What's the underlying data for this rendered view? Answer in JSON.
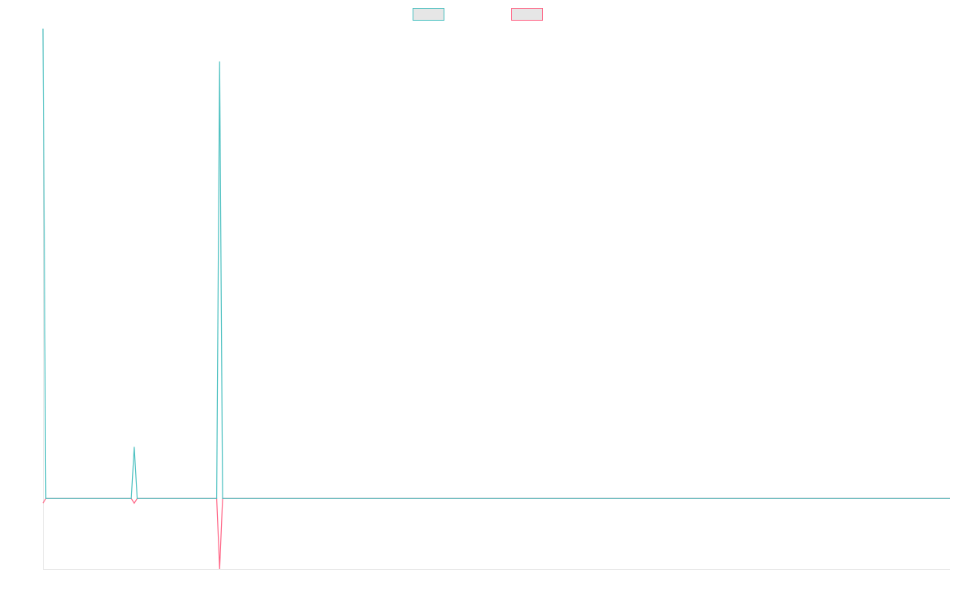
{
  "chart_data": {
    "type": "line",
    "ylim": [
      -1.5,
      10
    ],
    "legend": "top",
    "series": [
      {
        "color": "#4bc0c0",
        "values": [
          10,
          0,
          0,
          0,
          0,
          0,
          0,
          0,
          0,
          0,
          0,
          0,
          0,
          0,
          0,
          0,
          0,
          0,
          0,
          0,
          0,
          0,
          0,
          0,
          0,
          0,
          0,
          0,
          0,
          0,
          0,
          1.1,
          0,
          0,
          0,
          0,
          0,
          0,
          0,
          0,
          0,
          0,
          0,
          0,
          0,
          0,
          0,
          0,
          0,
          0,
          0,
          0,
          0,
          0,
          0,
          0,
          0,
          0,
          0,
          0,
          9.3,
          0,
          0,
          0,
          0,
          0,
          0,
          0,
          0,
          0,
          0,
          0,
          0,
          0,
          0,
          0,
          0,
          0,
          0,
          0,
          0,
          0,
          0,
          0,
          0,
          0,
          0,
          0,
          0,
          0,
          0,
          0,
          0,
          0,
          0,
          0,
          0,
          0,
          0,
          0,
          0,
          0,
          0,
          0,
          0,
          0,
          0,
          0,
          0,
          0,
          0,
          0,
          0,
          0,
          0,
          0,
          0,
          0,
          0,
          0,
          0,
          0,
          0,
          0,
          0,
          0,
          0,
          0,
          0,
          0,
          0,
          0,
          0,
          0,
          0,
          0,
          0,
          0,
          0,
          0,
          0,
          0,
          0,
          0,
          0,
          0,
          0,
          0,
          0,
          0,
          0,
          0,
          0,
          0,
          0,
          0,
          0,
          0,
          0,
          0,
          0,
          0,
          0,
          0,
          0,
          0,
          0,
          0,
          0,
          0,
          0,
          0,
          0,
          0,
          0,
          0,
          0,
          0,
          0,
          0,
          0,
          0,
          0,
          0,
          0,
          0,
          0,
          0,
          0,
          0,
          0,
          0,
          0,
          0,
          0,
          0,
          0,
          0,
          0,
          0,
          0,
          0,
          0,
          0,
          0,
          0,
          0,
          0,
          0,
          0,
          0,
          0,
          0,
          0,
          0,
          0,
          0,
          0,
          0,
          0,
          0,
          0,
          0,
          0,
          0,
          0,
          0,
          0,
          0,
          0,
          0,
          0,
          0,
          0,
          0,
          0,
          0,
          0,
          0,
          0,
          0,
          0,
          0,
          0,
          0,
          0,
          0,
          0,
          0,
          0,
          0,
          0,
          0,
          0,
          0,
          0,
          0,
          0,
          0,
          0,
          0,
          0,
          0,
          0,
          0,
          0,
          0,
          0,
          0,
          0,
          0,
          0,
          0,
          0,
          0,
          0,
          0,
          0,
          0,
          0,
          0,
          0,
          0,
          0,
          0,
          0,
          0,
          0,
          0,
          0,
          0,
          0,
          0,
          0,
          0,
          0,
          0,
          0,
          0,
          0,
          0,
          0,
          0,
          0,
          0,
          0,
          0,
          0,
          0
        ]
      },
      {
        "color": "#ff6384",
        "values": [
          -0.1,
          0,
          0,
          0,
          0,
          0,
          0,
          0,
          0,
          0,
          0,
          0,
          0,
          0,
          0,
          0,
          0,
          0,
          0,
          0,
          0,
          0,
          0,
          0,
          0,
          0,
          0,
          0,
          0,
          0,
          0,
          -0.1,
          0,
          0,
          0,
          0,
          0,
          0,
          0,
          0,
          0,
          0,
          0,
          0,
          0,
          0,
          0,
          0,
          0,
          0,
          0,
          0,
          0,
          0,
          0,
          0,
          0,
          0,
          0,
          0,
          -1.5,
          0,
          0,
          0,
          0,
          0,
          0,
          0,
          0,
          0,
          0,
          0,
          0,
          0,
          0,
          0,
          0,
          0,
          0,
          0,
          0,
          0,
          0,
          0,
          0,
          0,
          0,
          0,
          0,
          0,
          0,
          0,
          0,
          0,
          0,
          0,
          0,
          0,
          0,
          0,
          0,
          0,
          0,
          0,
          0,
          0,
          0,
          0,
          0,
          0,
          0,
          0,
          0,
          0,
          0,
          0,
          0,
          0,
          0,
          0,
          0,
          0,
          0,
          0,
          0,
          0,
          0,
          0,
          0,
          0,
          0,
          0,
          0,
          0,
          0,
          0,
          0,
          0,
          0,
          0,
          0,
          0,
          0,
          0,
          0,
          0,
          0,
          0,
          0,
          0,
          0,
          0,
          0,
          0,
          0,
          0,
          0,
          0,
          0,
          0,
          0,
          0,
          0,
          0,
          0,
          0,
          0,
          0,
          0,
          0,
          0,
          0,
          0,
          0,
          0,
          0,
          0,
          0,
          0,
          0,
          0,
          0,
          0,
          0,
          0,
          0,
          0,
          0,
          0,
          0,
          0,
          0,
          0,
          0,
          0,
          0,
          0,
          0,
          0,
          0,
          0,
          0,
          0,
          0,
          0,
          0,
          0,
          0,
          0,
          0,
          0,
          0,
          0,
          0,
          0,
          0,
          0,
          0,
          0,
          0,
          0,
          0,
          0,
          0,
          0,
          0,
          0,
          0,
          0,
          0,
          0,
          0,
          0,
          0,
          0,
          0,
          0,
          0,
          0,
          0,
          0,
          0,
          0,
          0,
          0,
          0,
          0,
          0,
          0,
          0,
          0,
          0,
          0,
          0,
          0,
          0,
          0,
          0,
          0,
          0,
          0,
          0,
          0,
          0,
          0,
          0,
          0,
          0,
          0,
          0,
          0,
          0,
          0,
          0,
          0,
          0,
          0,
          0,
          0,
          0,
          0,
          0,
          0,
          0,
          0,
          0,
          0,
          0,
          0,
          0,
          0,
          0,
          0,
          0,
          0,
          0,
          0,
          0,
          0,
          0,
          0,
          0,
          0,
          0,
          0,
          0,
          0,
          0,
          0
        ]
      }
    ]
  }
}
